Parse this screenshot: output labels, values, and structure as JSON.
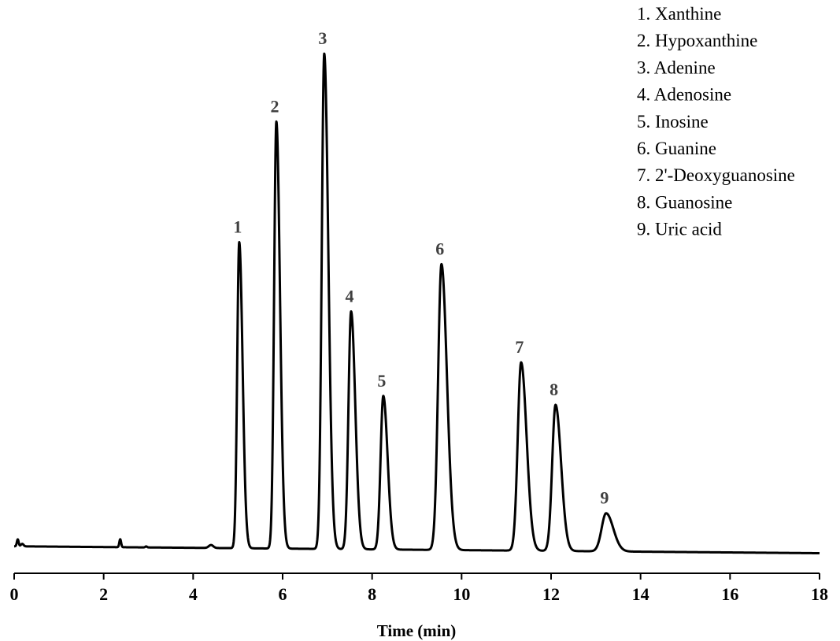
{
  "chart_data": {
    "type": "line",
    "title": "",
    "xlabel": "Time (min)",
    "ylabel": "",
    "xlim": [
      0,
      18
    ],
    "x_ticks": [
      "0",
      "2",
      "4",
      "6",
      "8",
      "10",
      "12",
      "14",
      "16",
      "18"
    ],
    "grid": false,
    "legend_position": "top-right",
    "line_color": "#000000",
    "baseline_start": 0.01,
    "baseline_end": -0.004,
    "peaks": [
      {
        "label": "1",
        "compound": "Xanthine",
        "time": 5.03,
        "height": 0.618,
        "sigma": 0.045,
        "tail": 0.05
      },
      {
        "label": "2",
        "compound": "Hypoxanthine",
        "time": 5.86,
        "height": 0.862,
        "sigma": 0.05,
        "tail": 0.05
      },
      {
        "label": "3",
        "compound": "Adenine",
        "time": 6.93,
        "height": 1.0,
        "sigma": 0.055,
        "tail": 0.06
      },
      {
        "label": "4",
        "compound": "Adenosine",
        "time": 7.53,
        "height": 0.48,
        "sigma": 0.058,
        "tail": 0.06
      },
      {
        "label": "5",
        "compound": "Inosine",
        "time": 8.25,
        "height": 0.31,
        "sigma": 0.06,
        "tail": 0.06
      },
      {
        "label": "6",
        "compound": "Guanine",
        "time": 9.55,
        "height": 0.577,
        "sigma": 0.075,
        "tail": 0.08
      },
      {
        "label": "7",
        "compound": "2'-Deoxyguanosine",
        "time": 11.33,
        "height": 0.38,
        "sigma": 0.075,
        "tail": 0.08
      },
      {
        "label": "8",
        "compound": "Guanosine",
        "time": 12.1,
        "height": 0.295,
        "sigma": 0.075,
        "tail": 0.08
      },
      {
        "label": "9",
        "compound": "Uric acid",
        "time": 13.23,
        "height": 0.077,
        "sigma": 0.1,
        "tail": 0.1
      }
    ],
    "minor_bumps": [
      {
        "time": 0.08,
        "height": 0.014,
        "sigma": 0.02
      },
      {
        "time": 0.18,
        "height": 0.005,
        "sigma": 0.03
      },
      {
        "time": 2.37,
        "height": 0.016,
        "sigma": 0.02
      },
      {
        "time": 2.95,
        "height": 0.002,
        "sigma": 0.02
      },
      {
        "time": 4.4,
        "height": 0.006,
        "sigma": 0.05
      }
    ]
  },
  "legend": [
    "1. Xanthine",
    "2. Hypoxanthine",
    "3. Adenine",
    "4. Adenosine",
    "5. Inosine",
    "6. Guanine",
    "7. 2'-Deoxyguanosine",
    "8. Guanosine",
    "9. Uric acid"
  ]
}
